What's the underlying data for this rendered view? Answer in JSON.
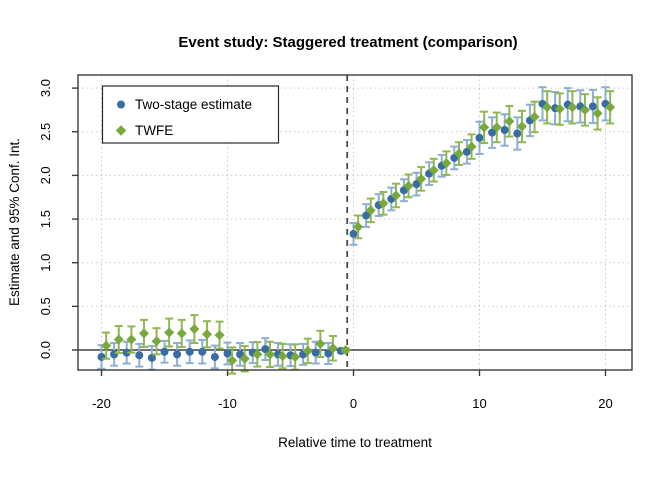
{
  "title": "Event study: Staggered treatment (comparison)",
  "chart_data": {
    "type": "scatter",
    "title": "Event study: Staggered treatment (comparison)",
    "xlabel": "Relative time to treatment",
    "ylabel": "Estimate and 95% Conf. Int.",
    "xlim": [
      -21.8,
      22.0
    ],
    "ylim": [
      -0.23,
      3.15
    ],
    "xticks": [
      -20,
      -10,
      0,
      10,
      20
    ],
    "yticks": [
      0.0,
      0.5,
      1.0,
      1.5,
      2.0,
      2.5,
      3.0
    ],
    "grid": "dotted light-gray at all ticks",
    "grid_color": "#c9c9c9",
    "box_color": "#3c3c3c",
    "reference_vline_x": -0.5,
    "reference_vline_style": "dashed dark-gray",
    "reference_hline_y": 0,
    "reference_hline_style": "solid black",
    "legend_position": "top-left",
    "series": [
      {
        "name": "Two-stage estimate",
        "marker": "circle",
        "color": "#3a6ca4",
        "ci_color": "#8cafd2",
        "x_offset": 0,
        "points_format": [
          "t",
          "estimate",
          "ci_low",
          "ci_high"
        ],
        "points": [
          [
            -20,
            -0.08,
            -0.215,
            0.055
          ],
          [
            -19,
            -0.05,
            -0.18,
            0.08
          ],
          [
            -18,
            -0.03,
            -0.155,
            0.095
          ],
          [
            -17,
            -0.06,
            -0.19,
            0.07
          ],
          [
            -16,
            -0.09,
            -0.225,
            0.045
          ],
          [
            -15,
            -0.02,
            -0.145,
            0.105
          ],
          [
            -14,
            -0.05,
            -0.18,
            0.08
          ],
          [
            -13,
            -0.02,
            -0.15,
            0.11
          ],
          [
            -12,
            -0.02,
            -0.155,
            0.115
          ],
          [
            -11,
            -0.08,
            -0.21,
            0.05
          ],
          [
            -10,
            -0.04,
            -0.165,
            0.085
          ],
          [
            -9,
            -0.05,
            -0.18,
            0.08
          ],
          [
            -8,
            -0.03,
            -0.15,
            0.09
          ],
          [
            -7,
            0.01,
            -0.115,
            0.135
          ],
          [
            -6,
            -0.05,
            -0.18,
            0.08
          ],
          [
            -5,
            -0.06,
            -0.185,
            0.065
          ],
          [
            -4,
            -0.05,
            -0.17,
            0.07
          ],
          [
            -3,
            -0.03,
            -0.155,
            0.095
          ],
          [
            -2,
            -0.04,
            -0.16,
            0.08
          ],
          [
            -1,
            -0.01,
            -0.03,
            0.01
          ],
          [
            0,
            1.33,
            1.205,
            1.455
          ],
          [
            1,
            1.54,
            1.41,
            1.67
          ],
          [
            2,
            1.66,
            1.535,
            1.785
          ],
          [
            3,
            1.73,
            1.6,
            1.86
          ],
          [
            4,
            1.83,
            1.705,
            1.955
          ],
          [
            5,
            1.9,
            1.77,
            2.03
          ],
          [
            6,
            2.02,
            1.89,
            2.15
          ],
          [
            7,
            2.11,
            1.985,
            2.235
          ],
          [
            8,
            2.2,
            2.07,
            2.33
          ],
          [
            9,
            2.27,
            2.135,
            2.405
          ],
          [
            10,
            2.43,
            2.245,
            2.615
          ],
          [
            11,
            2.49,
            2.315,
            2.665
          ],
          [
            12,
            2.52,
            2.34,
            2.7
          ],
          [
            13,
            2.48,
            2.295,
            2.665
          ],
          [
            14,
            2.63,
            2.45,
            2.81
          ],
          [
            15,
            2.82,
            2.63,
            3.01
          ],
          [
            16,
            2.77,
            2.585,
            2.955
          ],
          [
            17,
            2.81,
            2.62,
            3.0
          ],
          [
            18,
            2.79,
            2.605,
            2.975
          ],
          [
            19,
            2.79,
            2.6,
            2.98
          ],
          [
            20,
            2.82,
            2.63,
            3.01
          ]
        ]
      },
      {
        "name": "TWFE",
        "marker": "diamond",
        "color": "#79a83b",
        "ci_color": "#8fb851",
        "x_offset": 0.37,
        "points_format": [
          "t",
          "estimate",
          "ci_low",
          "ci_high"
        ],
        "points": [
          [
            -20,
            0.05,
            -0.1,
            0.2
          ],
          [
            -19,
            0.12,
            -0.035,
            0.275
          ],
          [
            -18,
            0.12,
            -0.03,
            0.27
          ],
          [
            -17,
            0.19,
            0.035,
            0.345
          ],
          [
            -16,
            0.1,
            -0.05,
            0.25
          ],
          [
            -15,
            0.2,
            0.04,
            0.36
          ],
          [
            -14,
            0.19,
            0.035,
            0.345
          ],
          [
            -13,
            0.24,
            0.08,
            0.4
          ],
          [
            -12,
            0.18,
            0.03,
            0.33
          ],
          [
            -11,
            0.17,
            0.015,
            0.325
          ],
          [
            -10,
            -0.12,
            -0.27,
            0.03
          ],
          [
            -9,
            -0.1,
            -0.245,
            0.045
          ],
          [
            -8,
            -0.05,
            -0.19,
            0.09
          ],
          [
            -7,
            -0.05,
            -0.195,
            0.095
          ],
          [
            -6,
            -0.07,
            -0.21,
            0.07
          ],
          [
            -5,
            -0.08,
            -0.225,
            0.065
          ],
          [
            -4,
            -0.01,
            -0.15,
            0.13
          ],
          [
            -3,
            0.07,
            -0.08,
            0.22
          ],
          [
            -2,
            0.02,
            -0.12,
            0.16
          ],
          [
            -1,
            0.0,
            -0.02,
            0.02
          ],
          [
            0,
            1.41,
            1.28,
            1.54
          ],
          [
            1,
            1.6,
            1.465,
            1.735
          ],
          [
            2,
            1.68,
            1.55,
            1.81
          ],
          [
            3,
            1.77,
            1.635,
            1.905
          ],
          [
            4,
            1.88,
            1.75,
            2.01
          ],
          [
            5,
            1.96,
            1.825,
            2.095
          ],
          [
            6,
            2.06,
            1.93,
            2.19
          ],
          [
            7,
            2.14,
            2.005,
            2.275
          ],
          [
            8,
            2.25,
            2.12,
            2.38
          ],
          [
            9,
            2.33,
            2.19,
            2.47
          ],
          [
            10,
            2.55,
            2.37,
            2.73
          ],
          [
            11,
            2.55,
            2.38,
            2.72
          ],
          [
            12,
            2.62,
            2.445,
            2.795
          ],
          [
            13,
            2.56,
            2.38,
            2.74
          ],
          [
            14,
            2.67,
            2.495,
            2.845
          ],
          [
            15,
            2.78,
            2.595,
            2.965
          ],
          [
            16,
            2.76,
            2.58,
            2.94
          ],
          [
            17,
            2.78,
            2.595,
            2.965
          ],
          [
            18,
            2.75,
            2.57,
            2.93
          ],
          [
            19,
            2.71,
            2.525,
            2.895
          ],
          [
            20,
            2.78,
            2.595,
            2.965
          ]
        ]
      }
    ]
  }
}
